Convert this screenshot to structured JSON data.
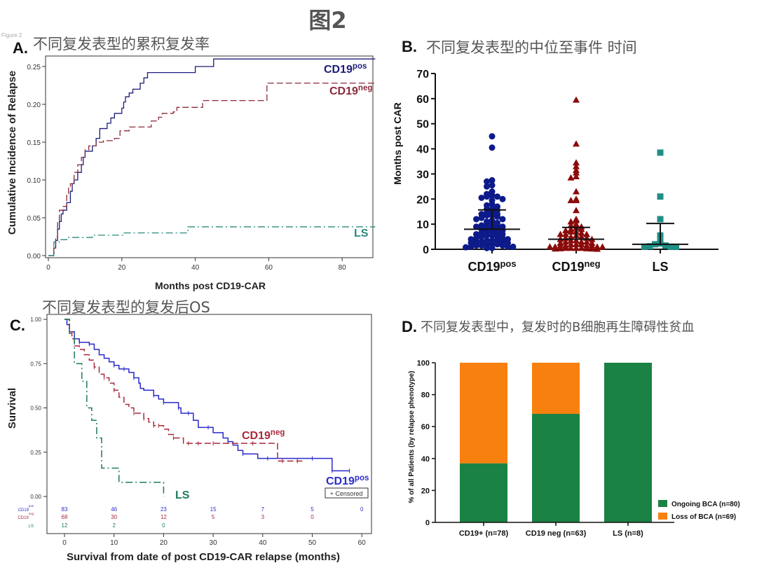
{
  "figure": {
    "title": "图2",
    "small_label": "Figure 2"
  },
  "panels": {
    "A": {
      "letter": "A.",
      "title": "不同复发表型的累积复发率"
    },
    "B": {
      "letter": "B.",
      "title": "不同复发表型的中位至事件 时间"
    },
    "C": {
      "letter": "C.",
      "title": "不同复发表型的复发后OS"
    },
    "D": {
      "letter": "D.",
      "title": "不同复发表型中，复发时的B细胞再生障碍性贫血"
    }
  },
  "chart_data": [
    {
      "id": "A",
      "type": "line",
      "step": true,
      "xlabel": "Months post CD19-CAR",
      "ylabel": "Cumulative Incidence of Relapse",
      "xlim": [
        0,
        89
      ],
      "ylim": [
        0,
        0.26
      ],
      "xticks": [
        "0",
        "20",
        "40",
        "60",
        "80"
      ],
      "xtick_values": [
        0,
        20,
        40,
        60,
        80
      ],
      "yticks": [
        "0.00",
        "0.05",
        "0.10",
        "0.15",
        "0.20",
        "0.25"
      ],
      "ytick_values": [
        0,
        0.05,
        0.1,
        0.15,
        0.2,
        0.25
      ],
      "grid": false,
      "series": [
        {
          "name_base": "CD19",
          "name_sup": "pos",
          "color": "#1c1c7a",
          "dash": "solid",
          "x": [
            0,
            1,
            1.5,
            2,
            2.5,
            3,
            3.5,
            4,
            5,
            6,
            6.5,
            7,
            8,
            9,
            9.5,
            10,
            12,
            13,
            14,
            16,
            17,
            18,
            20,
            20.5,
            21,
            22,
            23,
            25,
            26,
            27,
            40,
            45,
            89
          ],
          "y": [
            0,
            0,
            0.01,
            0.02,
            0.035,
            0.045,
            0.055,
            0.06,
            0.07,
            0.085,
            0.095,
            0.1,
            0.11,
            0.12,
            0.13,
            0.138,
            0.145,
            0.155,
            0.168,
            0.175,
            0.182,
            0.188,
            0.195,
            0.203,
            0.21,
            0.215,
            0.22,
            0.228,
            0.235,
            0.242,
            0.25,
            0.26,
            0.26
          ]
        },
        {
          "name_base": "CD19",
          "name_sup": "neg",
          "color": "#8b2a3a",
          "dash": "dashed",
          "x": [
            0,
            1,
            1.5,
            2,
            2.5,
            3,
            4,
            5,
            5.5,
            6,
            7,
            8,
            9,
            10,
            11,
            13,
            15,
            18,
            19.5,
            22,
            28,
            30,
            31,
            34,
            35,
            42,
            59.5,
            89
          ],
          "y": [
            0,
            0,
            0.01,
            0.025,
            0.045,
            0.06,
            0.065,
            0.08,
            0.09,
            0.095,
            0.11,
            0.12,
            0.13,
            0.14,
            0.145,
            0.15,
            0.152,
            0.155,
            0.165,
            0.17,
            0.178,
            0.183,
            0.188,
            0.19,
            0.196,
            0.205,
            0.228,
            0.228
          ]
        },
        {
          "name_base": "LS",
          "name_sup": "",
          "color": "#2a8a7a",
          "dash": "dashdot",
          "x": [
            0,
            1.5,
            3,
            5,
            12,
            20.5,
            38,
            89
          ],
          "y": [
            0,
            0.018,
            0.021,
            0.024,
            0.027,
            0.03,
            0.038,
            0.038
          ]
        }
      ]
    },
    {
      "id": "B",
      "type": "scatter",
      "ylabel": "Months post CAR",
      "ylim": [
        0,
        70
      ],
      "yticks": [
        "0",
        "10",
        "20",
        "30",
        "40",
        "50",
        "60",
        "70"
      ],
      "ytick_values": [
        0,
        10,
        20,
        30,
        40,
        50,
        60,
        70
      ],
      "categories": [
        {
          "base": "CD19",
          "sup": "pos"
        },
        {
          "base": "CD19",
          "sup": "neg"
        },
        {
          "base": "LS",
          "sup": ""
        }
      ],
      "series": [
        {
          "marker": "circle",
          "color": "#0d1a8a",
          "median": 8,
          "upper": 15.7,
          "values": [
            45,
            40.5,
            27.5,
            27,
            25.5,
            25,
            23,
            22,
            21.5,
            21,
            21,
            20.5,
            20,
            19.5,
            18,
            17.5,
            17,
            16,
            16,
            15.5,
            15,
            14.5,
            14,
            14,
            13.5,
            13.5,
            13,
            12.5,
            12,
            12,
            11.5,
            11,
            10.5,
            10,
            10,
            9.5,
            9.5,
            9,
            9,
            8.5,
            8.5,
            8,
            8,
            7.5,
            7,
            7,
            6.5,
            6.5,
            6,
            6,
            5.5,
            5.5,
            5,
            5,
            4.5,
            4.5,
            4,
            4,
            3.5,
            3.5,
            3.5,
            3,
            3,
            3,
            2.5,
            2.5,
            2,
            2,
            2,
            1.5,
            1.5,
            1.5,
            1,
            1,
            1,
            0.8,
            0.5,
            0.5
          ]
        },
        {
          "marker": "triangle",
          "color": "#8b0a0a",
          "median": 4,
          "upper": 8.7,
          "values": [
            59.5,
            42,
            34.5,
            33,
            31.5,
            30.5,
            29,
            28.5,
            23,
            20,
            19.5,
            19.5,
            15.5,
            12,
            11.5,
            11,
            10,
            9.5,
            9,
            8.5,
            8,
            8,
            7.5,
            7,
            7,
            6.5,
            6,
            6,
            6,
            5.5,
            5,
            5,
            4.5,
            4.5,
            4,
            4,
            3.5,
            3.5,
            3,
            3,
            3,
            2.5,
            2.5,
            2,
            2,
            2,
            1.5,
            1.5,
            1.5,
            1.5,
            1,
            1,
            1,
            1,
            0.5,
            0.5,
            0.5,
            0.5,
            0.3,
            0.3,
            0.2,
            0.2,
            0.1
          ]
        },
        {
          "marker": "square",
          "color": "#1f8f86",
          "median": 2,
          "upper": 10.3,
          "values": [
            38.5,
            21,
            12,
            5.5,
            3,
            2.3,
            2,
            1.5,
            1.2,
            1,
            1,
            1
          ]
        }
      ]
    },
    {
      "id": "C",
      "type": "line",
      "step": true,
      "xlabel": "Survival from date of post CD19-CAR relapse (months)",
      "ylabel": "Survival",
      "xlim": [
        0,
        60
      ],
      "ylim": [
        0,
        1
      ],
      "xticks": [
        "0",
        "10",
        "20",
        "30",
        "40",
        "50",
        "60"
      ],
      "xtick_values": [
        0,
        10,
        20,
        30,
        40,
        50,
        60
      ],
      "yticks": [
        "0.00",
        "0.25",
        "0.50",
        "0.75",
        "1.00"
      ],
      "ytick_values": [
        0,
        0.25,
        0.5,
        0.75,
        1
      ],
      "legend": "+ Censored",
      "series": [
        {
          "name_base": "CD19",
          "name_sup": "pos",
          "color": "#2a2acc",
          "dash": "solid",
          "x": [
            0,
            0.5,
            1,
            2,
            3,
            5,
            6,
            7,
            8,
            9,
            10,
            11,
            13,
            14,
            15,
            15.3,
            16,
            18,
            19,
            20,
            23,
            23.5,
            26,
            27,
            30,
            32,
            33,
            34,
            35,
            36,
            39,
            54,
            57.5
          ],
          "y": [
            1,
            0.97,
            0.93,
            0.89,
            0.87,
            0.86,
            0.83,
            0.8,
            0.78,
            0.76,
            0.74,
            0.72,
            0.7,
            0.67,
            0.64,
            0.61,
            0.6,
            0.57,
            0.55,
            0.53,
            0.5,
            0.47,
            0.43,
            0.39,
            0.36,
            0.33,
            0.31,
            0.29,
            0.26,
            0.24,
            0.215,
            0.145,
            0.145
          ],
          "censored": [
            3,
            5,
            10,
            12,
            14,
            18,
            20,
            23,
            25,
            29,
            33,
            36,
            41,
            50,
            54,
            57.5
          ],
          "at_risk": [
            "83",
            "46",
            "23",
            "15",
            "7",
            "5",
            "0"
          ]
        },
        {
          "name_base": "CD19",
          "name_sup": "neg",
          "color": "#a82a3a",
          "dash": "dashed",
          "x": [
            0,
            1,
            1.5,
            2,
            3,
            4,
            5,
            6,
            7,
            8,
            9,
            10,
            11,
            12,
            13,
            14,
            16,
            17,
            18,
            20,
            21,
            22,
            24,
            43,
            48
          ],
          "y": [
            1,
            0.93,
            0.89,
            0.85,
            0.83,
            0.8,
            0.77,
            0.73,
            0.69,
            0.67,
            0.64,
            0.6,
            0.56,
            0.52,
            0.5,
            0.47,
            0.44,
            0.42,
            0.4,
            0.38,
            0.35,
            0.33,
            0.3,
            0.2,
            0.2
          ],
          "censored": [
            6,
            8,
            10,
            14,
            16,
            18,
            19,
            22,
            25,
            27,
            30,
            34,
            38,
            44,
            47
          ],
          "at_risk": [
            "68",
            "30",
            "12",
            "5",
            "3",
            "0"
          ]
        },
        {
          "name_base": "LS",
          "name_sup": "",
          "color": "#1e7a5e",
          "dash": "dashdot",
          "x": [
            0,
            1,
            2,
            3.5,
            4.5,
            5.5,
            6.5,
            7.5,
            11,
            20
          ],
          "y": [
            1,
            0.92,
            0.75,
            0.65,
            0.5,
            0.43,
            0.33,
            0.16,
            0.08,
            0
          ],
          "censored": [],
          "at_risk": [
            "12",
            "2",
            "0"
          ]
        }
      ]
    },
    {
      "id": "D",
      "type": "bar",
      "stacked": true,
      "ylabel": "% of all Patients (by relapse phenotype)",
      "ylim": [
        0,
        100
      ],
      "yticks": [
        "0",
        "20",
        "40",
        "60",
        "80",
        "100"
      ],
      "ytick_values": [
        0,
        20,
        40,
        60,
        80,
        100
      ],
      "categories": [
        "CD19+ (n=78)",
        "CD19 neg (n=63)",
        "LS (n=8)"
      ],
      "legend_position": "right",
      "series": [
        {
          "name": "Ongoing BCA (n=80)",
          "color": "#1a8243",
          "values": [
            37,
            68,
            100
          ]
        },
        {
          "name": "Loss of BCA (n=69)",
          "color": "#f8800e",
          "values": [
            63,
            32,
            0
          ]
        }
      ]
    }
  ]
}
